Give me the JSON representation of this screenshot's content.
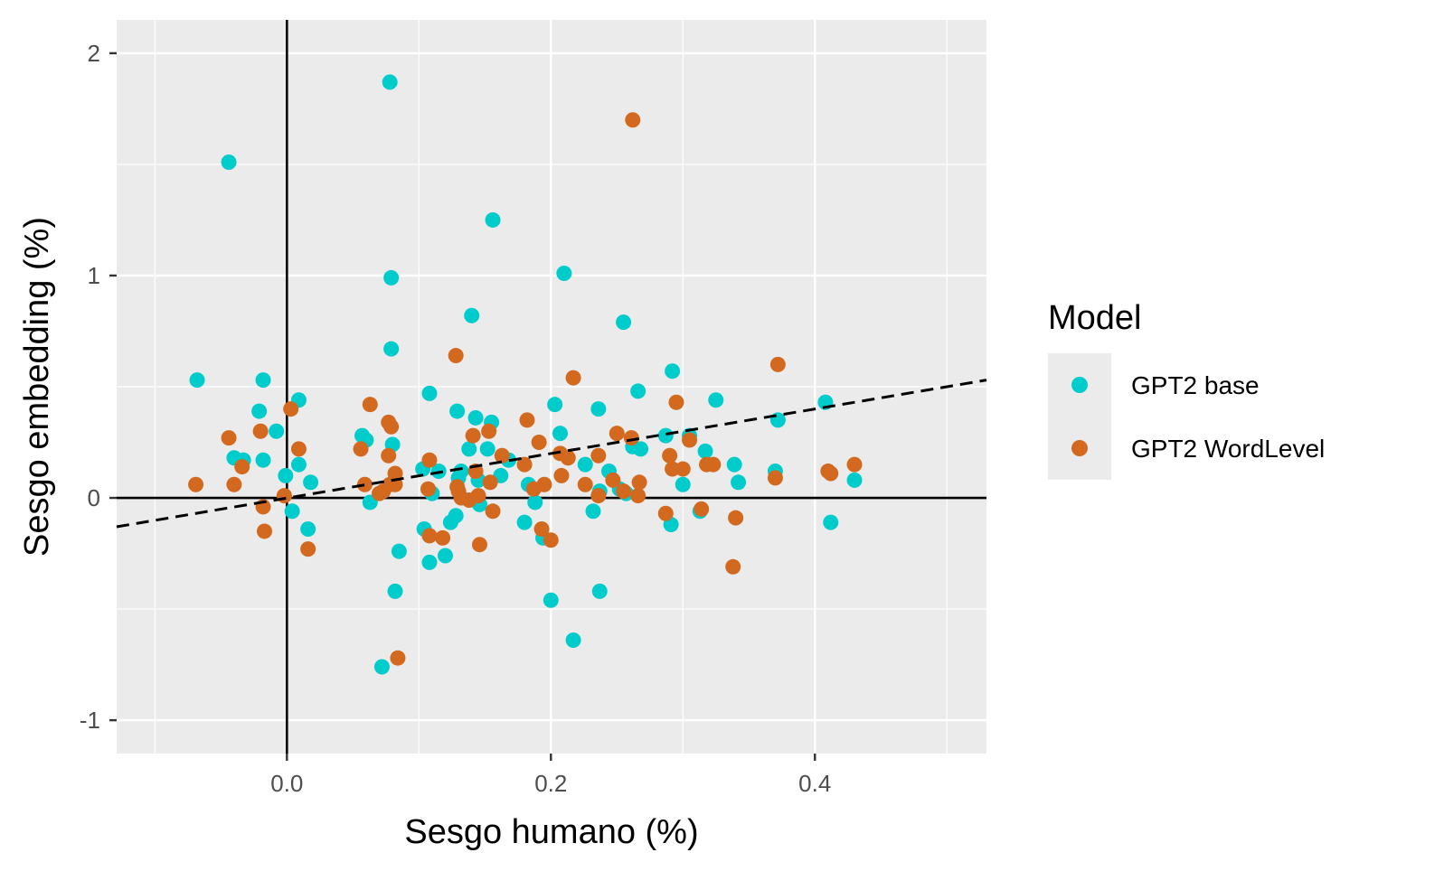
{
  "chart_data": {
    "type": "scatter",
    "title": "",
    "xlabel": "Sesgo humano (%)",
    "ylabel": "Sesgo embedding (%)",
    "xlim": [
      -0.129,
      0.53
    ],
    "ylim": [
      -1.15,
      2.15
    ],
    "x_ticks": [
      0.0,
      0.2,
      0.4
    ],
    "x_tick_labels": [
      "0.0",
      "0.2",
      "0.4"
    ],
    "y_ticks": [
      2,
      1,
      0,
      -1
    ],
    "y_tick_labels": [
      "2",
      "1",
      "0",
      "-1"
    ],
    "grid": true,
    "reference_lines": [
      "x = 0",
      "y = 0"
    ],
    "trend_line": {
      "style": "dashed",
      "color": "#000000",
      "x": [
        -0.129,
        0.53
      ],
      "y": [
        -0.13,
        0.53
      ]
    },
    "legend": {
      "title": "Model",
      "placement": "right"
    },
    "series": [
      {
        "name": "GPT2 base",
        "color": "#00CCCC",
        "points": [
          [
            -0.068,
            0.53
          ],
          [
            -0.044,
            1.51
          ],
          [
            -0.04,
            0.18
          ],
          [
            -0.033,
            0.17
          ],
          [
            -0.021,
            0.39
          ],
          [
            -0.018,
            0.53
          ],
          [
            -0.018,
            0.17
          ],
          [
            -0.008,
            0.3
          ],
          [
            -0.001,
            0.1
          ],
          [
            0.004,
            -0.06
          ],
          [
            0.009,
            0.44
          ],
          [
            0.009,
            0.15
          ],
          [
            0.016,
            -0.14
          ],
          [
            0.018,
            0.07
          ],
          [
            0.057,
            0.28
          ],
          [
            0.06,
            0.26
          ],
          [
            0.063,
            -0.02
          ],
          [
            0.072,
            -0.76
          ],
          [
            0.078,
            1.87
          ],
          [
            0.079,
            0.99
          ],
          [
            0.079,
            0.67
          ],
          [
            0.08,
            0.24
          ],
          [
            0.082,
            -0.42
          ],
          [
            0.085,
            -0.24
          ],
          [
            0.103,
            0.13
          ],
          [
            0.104,
            -0.14
          ],
          [
            0.108,
            0.47
          ],
          [
            0.108,
            -0.29
          ],
          [
            0.11,
            0.02
          ],
          [
            0.115,
            0.12
          ],
          [
            0.12,
            -0.26
          ],
          [
            0.124,
            -0.11
          ],
          [
            0.128,
            -0.08
          ],
          [
            0.129,
            0.39
          ],
          [
            0.13,
            0.09
          ],
          [
            0.132,
            0.12
          ],
          [
            0.138,
            0.22
          ],
          [
            0.14,
            0.82
          ],
          [
            0.143,
            0.36
          ],
          [
            0.145,
            0.08
          ],
          [
            0.146,
            -0.03
          ],
          [
            0.152,
            0.22
          ],
          [
            0.155,
            0.34
          ],
          [
            0.156,
            1.25
          ],
          [
            0.162,
            0.1
          ],
          [
            0.168,
            0.17
          ],
          [
            0.18,
            -0.11
          ],
          [
            0.183,
            0.06
          ],
          [
            0.188,
            -0.02
          ],
          [
            0.194,
            -0.18
          ],
          [
            0.2,
            -0.46
          ],
          [
            0.203,
            0.42
          ],
          [
            0.207,
            0.29
          ],
          [
            0.21,
            1.01
          ],
          [
            0.217,
            -0.64
          ],
          [
            0.226,
            0.15
          ],
          [
            0.232,
            -0.06
          ],
          [
            0.236,
            0.4
          ],
          [
            0.237,
            0.03
          ],
          [
            0.237,
            -0.42
          ],
          [
            0.244,
            0.12
          ],
          [
            0.252,
            0.04
          ],
          [
            0.255,
            0.79
          ],
          [
            0.257,
            0.02
          ],
          [
            0.262,
            0.23
          ],
          [
            0.266,
            0.48
          ],
          [
            0.268,
            0.22
          ],
          [
            0.287,
            0.28
          ],
          [
            0.291,
            -0.12
          ],
          [
            0.292,
            0.57
          ],
          [
            0.3,
            0.06
          ],
          [
            0.305,
            0.28
          ],
          [
            0.313,
            -0.06
          ],
          [
            0.317,
            0.21
          ],
          [
            0.325,
            0.44
          ],
          [
            0.339,
            0.15
          ],
          [
            0.342,
            0.07
          ],
          [
            0.37,
            0.12
          ],
          [
            0.372,
            0.35
          ],
          [
            0.408,
            0.43
          ],
          [
            0.412,
            -0.11
          ],
          [
            0.43,
            0.08
          ]
        ]
      },
      {
        "name": "GPT2 WordLevel",
        "color": "#D2691E",
        "points": [
          [
            -0.069,
            0.06
          ],
          [
            -0.044,
            0.27
          ],
          [
            -0.04,
            0.06
          ],
          [
            -0.034,
            0.14
          ],
          [
            -0.02,
            0.3
          ],
          [
            -0.018,
            -0.04
          ],
          [
            -0.017,
            -0.15
          ],
          [
            -0.002,
            0.01
          ],
          [
            0.003,
            0.4
          ],
          [
            0.009,
            0.22
          ],
          [
            0.016,
            -0.23
          ],
          [
            0.056,
            0.22
          ],
          [
            0.059,
            0.06
          ],
          [
            0.063,
            0.42
          ],
          [
            0.07,
            0.02
          ],
          [
            0.073,
            0.03
          ],
          [
            0.077,
            0.34
          ],
          [
            0.077,
            0.19
          ],
          [
            0.078,
            0.06
          ],
          [
            0.079,
            0.32
          ],
          [
            0.082,
            0.11
          ],
          [
            0.082,
            0.06
          ],
          [
            0.084,
            -0.72
          ],
          [
            0.107,
            0.04
          ],
          [
            0.108,
            0.17
          ],
          [
            0.108,
            -0.17
          ],
          [
            0.118,
            -0.18
          ],
          [
            0.128,
            0.64
          ],
          [
            0.129,
            0.05
          ],
          [
            0.13,
            0.03
          ],
          [
            0.132,
            0.0
          ],
          [
            0.138,
            -0.01
          ],
          [
            0.141,
            0.28
          ],
          [
            0.143,
            0.12
          ],
          [
            0.145,
            0.01
          ],
          [
            0.146,
            -0.21
          ],
          [
            0.153,
            0.3
          ],
          [
            0.154,
            0.07
          ],
          [
            0.156,
            -0.06
          ],
          [
            0.163,
            0.19
          ],
          [
            0.18,
            0.15
          ],
          [
            0.182,
            0.35
          ],
          [
            0.187,
            0.04
          ],
          [
            0.191,
            0.25
          ],
          [
            0.193,
            -0.14
          ],
          [
            0.195,
            0.06
          ],
          [
            0.2,
            -0.19
          ],
          [
            0.207,
            0.2
          ],
          [
            0.208,
            0.1
          ],
          [
            0.213,
            0.18
          ],
          [
            0.217,
            0.54
          ],
          [
            0.226,
            0.06
          ],
          [
            0.236,
            0.19
          ],
          [
            0.236,
            0.01
          ],
          [
            0.247,
            0.08
          ],
          [
            0.25,
            0.29
          ],
          [
            0.255,
            0.03
          ],
          [
            0.261,
            0.27
          ],
          [
            0.262,
            1.7
          ],
          [
            0.266,
            0.01
          ],
          [
            0.267,
            0.07
          ],
          [
            0.287,
            -0.07
          ],
          [
            0.29,
            0.19
          ],
          [
            0.292,
            0.13
          ],
          [
            0.295,
            0.43
          ],
          [
            0.3,
            0.13
          ],
          [
            0.305,
            0.26
          ],
          [
            0.314,
            -0.05
          ],
          [
            0.318,
            0.15
          ],
          [
            0.323,
            0.15
          ],
          [
            0.338,
            -0.31
          ],
          [
            0.34,
            -0.09
          ],
          [
            0.37,
            0.09
          ],
          [
            0.372,
            0.6
          ],
          [
            0.41,
            0.12
          ],
          [
            0.412,
            0.11
          ],
          [
            0.43,
            0.15
          ]
        ]
      }
    ]
  }
}
